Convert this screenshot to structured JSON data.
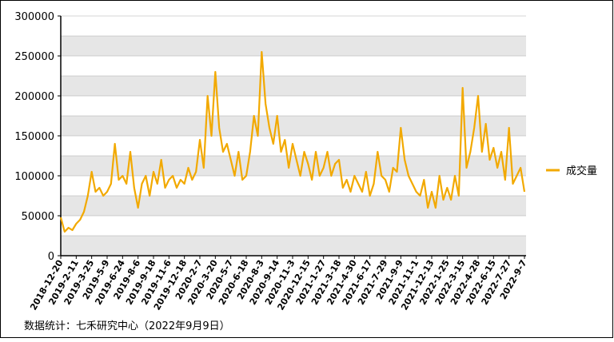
{
  "chart_data": {
    "type": "line",
    "categories": [
      "2018-12-20",
      null,
      null,
      null,
      "2019-2-11",
      null,
      null,
      null,
      "2019-3-25",
      null,
      null,
      null,
      "2019-5-9",
      null,
      null,
      null,
      "2019-6-24",
      null,
      null,
      null,
      "2019-8-6",
      null,
      null,
      null,
      "2019-9-18",
      null,
      null,
      null,
      "2019-11-6",
      null,
      null,
      null,
      "2019-12-18",
      null,
      null,
      null,
      "2020-2-7",
      null,
      null,
      null,
      "2020-3-20",
      null,
      null,
      null,
      "2020-5-7",
      null,
      null,
      null,
      "2020-6-18",
      null,
      null,
      null,
      "2020-8-3",
      null,
      null,
      null,
      "2020-9-14",
      null,
      null,
      null,
      "2020-11-3",
      null,
      null,
      null,
      "2020-12-15",
      null,
      null,
      null,
      "2021-1-27",
      null,
      null,
      null,
      "2021-3-18",
      null,
      null,
      null,
      "2021-4-30",
      null,
      null,
      null,
      "2021-6-17",
      null,
      null,
      null,
      "2021-7-29",
      null,
      null,
      null,
      "2021-9-9",
      null,
      null,
      null,
      "2021-11-1",
      null,
      null,
      null,
      "2021-12-13",
      null,
      null,
      null,
      "2022-1-25",
      null,
      null,
      null,
      "2022-3-15",
      null,
      null,
      null,
      "2022-4-28",
      null,
      null,
      null,
      "2022-6-15",
      null,
      null,
      null,
      "2022-7-27",
      null,
      null,
      null,
      "2022-9-7"
    ],
    "series": [
      {
        "name": "成交量",
        "color": "#f2a900",
        "values": [
          48000,
          30000,
          35000,
          32000,
          40000,
          45000,
          55000,
          75000,
          105000,
          80000,
          85000,
          75000,
          80000,
          90000,
          140000,
          95000,
          100000,
          90000,
          130000,
          85000,
          60000,
          90000,
          100000,
          75000,
          105000,
          90000,
          120000,
          85000,
          95000,
          100000,
          85000,
          95000,
          90000,
          110000,
          95000,
          105000,
          145000,
          110000,
          200000,
          150000,
          230000,
          160000,
          130000,
          140000,
          120000,
          100000,
          130000,
          95000,
          100000,
          130000,
          175000,
          150000,
          255000,
          190000,
          160000,
          140000,
          175000,
          130000,
          145000,
          110000,
          140000,
          120000,
          100000,
          130000,
          115000,
          95000,
          130000,
          100000,
          110000,
          130000,
          100000,
          115000,
          120000,
          85000,
          95000,
          80000,
          100000,
          90000,
          80000,
          105000,
          75000,
          90000,
          130000,
          100000,
          95000,
          80000,
          110000,
          105000,
          160000,
          120000,
          100000,
          90000,
          80000,
          75000,
          95000,
          60000,
          80000,
          60000,
          100000,
          70000,
          85000,
          70000,
          100000,
          75000,
          210000,
          110000,
          130000,
          160000,
          200000,
          130000,
          165000,
          120000,
          135000,
          110000,
          130000,
          95000,
          160000,
          90000,
          100000,
          110000,
          80000
        ]
      }
    ],
    "ylim": [
      0,
      300000
    ],
    "yticks": [
      0,
      50000,
      100000,
      150000,
      200000,
      250000,
      300000
    ],
    "grid": true,
    "legend": "right",
    "source": "数据统计：七禾研究中心（2022年9月9日）"
  }
}
